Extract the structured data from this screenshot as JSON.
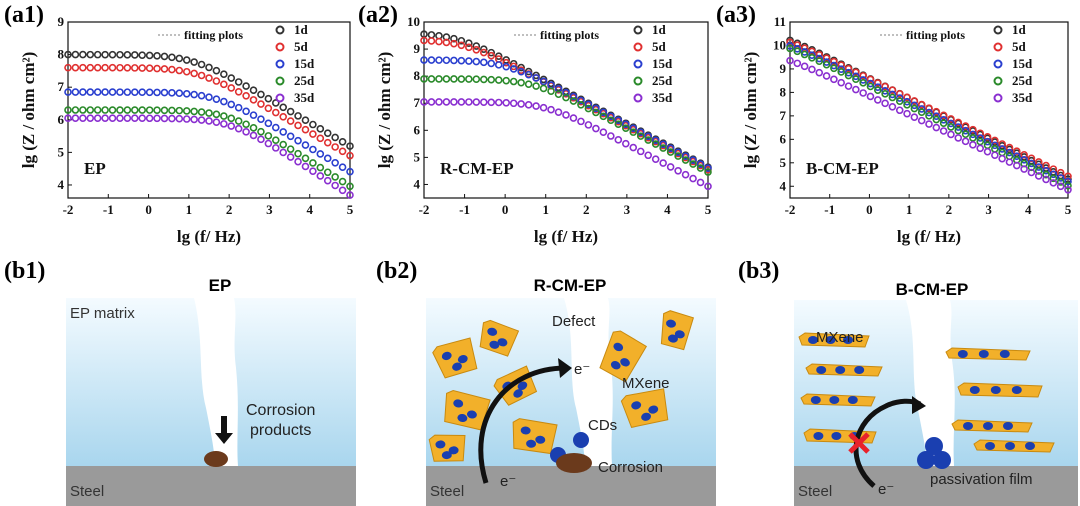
{
  "panels": {
    "a1": "(a1)",
    "a2": "(a2)",
    "a3": "(a3)",
    "b1": "(b1)",
    "b2": "(b2)",
    "b3": "(b3)"
  },
  "chart_data": [
    {
      "type": "scatter",
      "panel": "(a1)",
      "annotation": "EP",
      "legend_title": "fitting plots",
      "xlabel": "lg (f/ Hz)",
      "ylabel": "lg (Z / ohm cm²)",
      "xlim": [
        -2,
        5
      ],
      "ylim": [
        3.6,
        9
      ],
      "xticks": [
        -2,
        -1,
        0,
        1,
        2,
        3,
        4,
        5
      ],
      "yticks": [
        4,
        5,
        6,
        7,
        8,
        9
      ],
      "legend_position": "top-right",
      "series": [
        {
          "name": "1d",
          "color": "#333333",
          "plateau": 8.0,
          "corner": 1.1,
          "slope": 0.72
        },
        {
          "name": "5d",
          "color": "#e03030",
          "plateau": 7.6,
          "corner": 1.25,
          "slope": 0.72
        },
        {
          "name": "15d",
          "color": "#2a3fcf",
          "plateau": 6.85,
          "corner": 1.7,
          "slope": 0.74
        },
        {
          "name": "25d",
          "color": "#2a8a2a",
          "plateau": 6.3,
          "corner": 2.0,
          "slope": 0.78
        },
        {
          "name": "35d",
          "color": "#8a2fd0",
          "plateau": 6.05,
          "corner": 2.05,
          "slope": 0.8
        }
      ]
    },
    {
      "type": "scatter",
      "panel": "(a2)",
      "annotation": "R-CM-EP",
      "legend_title": "fitting plots",
      "xlabel": "lg (f/ Hz)",
      "ylabel": "lg (Z / ohm cm²)",
      "xlim": [
        -2,
        5
      ],
      "ylim": [
        3.5,
        10
      ],
      "xticks": [
        -2,
        -1,
        0,
        1,
        2,
        3,
        4,
        5
      ],
      "yticks": [
        4,
        5,
        6,
        7,
        8,
        9,
        10
      ],
      "legend_position": "top-right",
      "series": [
        {
          "name": "1d",
          "color": "#333333",
          "plateau": 9.6,
          "corner": -1.2,
          "slope": 0.8
        },
        {
          "name": "5d",
          "color": "#e03030",
          "plateau": 9.35,
          "corner": -1.0,
          "slope": 0.8
        },
        {
          "name": "15d",
          "color": "#2a3fcf",
          "plateau": 8.6,
          "corner": 0.0,
          "slope": 0.8
        },
        {
          "name": "25d",
          "color": "#2a8a2a",
          "plateau": 7.9,
          "corner": 0.7,
          "slope": 0.8
        },
        {
          "name": "35d",
          "color": "#8a2fd0",
          "plateau": 7.05,
          "corner": 1.0,
          "slope": 0.78
        }
      ]
    },
    {
      "type": "scatter",
      "panel": "(a3)",
      "annotation": "B-CM-EP",
      "legend_title": "fitting plots",
      "xlabel": "lg (f/ Hz)",
      "ylabel": "lg (Z / ohm cm²)",
      "xlim": [
        -2,
        5
      ],
      "ylim": [
        3.5,
        11
      ],
      "xticks": [
        -2,
        -1,
        0,
        1,
        2,
        3,
        4,
        5
      ],
      "yticks": [
        4,
        5,
        6,
        7,
        8,
        9,
        10,
        11
      ],
      "legend_position": "top-right",
      "series": [
        {
          "name": "1d",
          "color": "#333333",
          "plateau": 10.75,
          "corner": -2.5,
          "slope": 0.86
        },
        {
          "name": "5d",
          "color": "#e03030",
          "plateau": 10.65,
          "corner": -2.5,
          "slope": 0.83
        },
        {
          "name": "15d",
          "color": "#2a3fcf",
          "plateau": 10.5,
          "corner": -2.5,
          "slope": 0.84
        },
        {
          "name": "25d",
          "color": "#2a8a2a",
          "plateau": 10.4,
          "corner": -2.5,
          "slope": 0.85
        },
        {
          "name": "35d",
          "color": "#8a2fd0",
          "plateau": 9.85,
          "corner": -2.5,
          "slope": 0.8
        }
      ]
    }
  ],
  "schemes": {
    "b1": {
      "title": "EP",
      "matrix_label": "EP matrix",
      "corrosion_label_1": "Corrosion",
      "corrosion_label_2": "products",
      "steel_label": "Steel"
    },
    "b2": {
      "title": "R-CM-EP",
      "defect_label": "Defect",
      "electron_label": "e⁻",
      "mxene_label": "MXene",
      "cds_label": "CDs",
      "corrosion_label": "Corrosion",
      "steel_label": "Steel",
      "electron_label_2": "e⁻"
    },
    "b3": {
      "title": "B-CM-EP",
      "mxene_label": "MXene",
      "passivation_label": "passivation film",
      "steel_label": "Steel",
      "electron_label": "e⁻"
    }
  }
}
